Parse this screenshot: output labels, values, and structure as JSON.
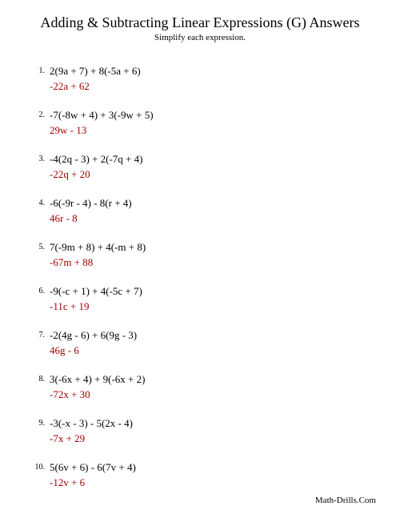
{
  "title": "Adding & Subtracting Linear Expressions (G) Answers",
  "subtitle": "Simplify each expression.",
  "problems": [
    {
      "num": "1.",
      "expression": "2(9a + 7) + 8(-5a + 6)",
      "answer": "-22a + 62"
    },
    {
      "num": "2.",
      "expression": "-7(-8w + 4) + 3(-9w + 5)",
      "answer": "29w - 13"
    },
    {
      "num": "3.",
      "expression": "-4(2q - 3) + 2(-7q + 4)",
      "answer": "-22q + 20"
    },
    {
      "num": "4.",
      "expression": "-6(-9r - 4) - 8(r + 4)",
      "answer": "46r - 8"
    },
    {
      "num": "5.",
      "expression": "7(-9m + 8) + 4(-m + 8)",
      "answer": "-67m + 88"
    },
    {
      "num": "6.",
      "expression": "-9(-c + 1) + 4(-5c + 7)",
      "answer": "-11c + 19"
    },
    {
      "num": "7.",
      "expression": "-2(4g - 6) + 6(9g - 3)",
      "answer": "46g - 6"
    },
    {
      "num": "8.",
      "expression": "3(-6x + 4) + 9(-6x + 2)",
      "answer": "-72x + 30"
    },
    {
      "num": "9.",
      "expression": "-3(-x - 3) - 5(2x - 4)",
      "answer": "-7x + 29"
    },
    {
      "num": "10.",
      "expression": "5(6v + 6) - 6(7v + 4)",
      "answer": "-12v + 6"
    }
  ],
  "footer": "Math-Drills.Com",
  "colors": {
    "answer_color": "#a00000",
    "text_color": "#000000",
    "background": "#ffffff"
  }
}
